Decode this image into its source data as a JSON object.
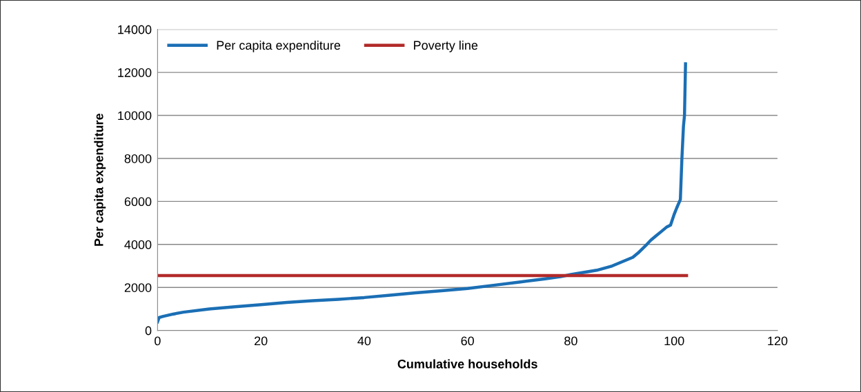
{
  "chart_data": {
    "type": "line",
    "xlabel": "Cumulative households",
    "ylabel": "Per capita expenditure",
    "xlim": [
      0,
      120
    ],
    "xticks": [
      0,
      20,
      40,
      60,
      80,
      100,
      120
    ],
    "ylim": [
      0,
      14000
    ],
    "yticks": [
      0,
      2000,
      4000,
      6000,
      8000,
      10000,
      12000,
      14000
    ],
    "grid": "y",
    "legend": "top left",
    "series": [
      {
        "name": "Per capita expenditure",
        "color": "#1b6fb5",
        "x": [
          0,
          0.3,
          1,
          3,
          5,
          10,
          15,
          20,
          25,
          30,
          35,
          40,
          45,
          50,
          55,
          60,
          65,
          70,
          75,
          78,
          80,
          85,
          88,
          90,
          92,
          93,
          94.7,
          95.5,
          96.5,
          97.5,
          98.5,
          99.3,
          100,
          100.5,
          101.2,
          101.5,
          101.8,
          102,
          102.2
        ],
        "values": [
          400,
          600,
          650,
          760,
          850,
          1000,
          1100,
          1200,
          1300,
          1380,
          1450,
          1530,
          1640,
          1750,
          1850,
          1950,
          2100,
          2250,
          2400,
          2500,
          2600,
          2800,
          3000,
          3200,
          3400,
          3600,
          4000,
          4200,
          4400,
          4600,
          4800,
          4900,
          5400,
          5700,
          6090,
          8000,
          9500,
          10000,
          12400
        ]
      },
      {
        "name": "Poverty line",
        "color": "#b22a2a",
        "x": [
          0,
          102.4
        ],
        "values": [
          2550,
          2550
        ]
      }
    ]
  }
}
